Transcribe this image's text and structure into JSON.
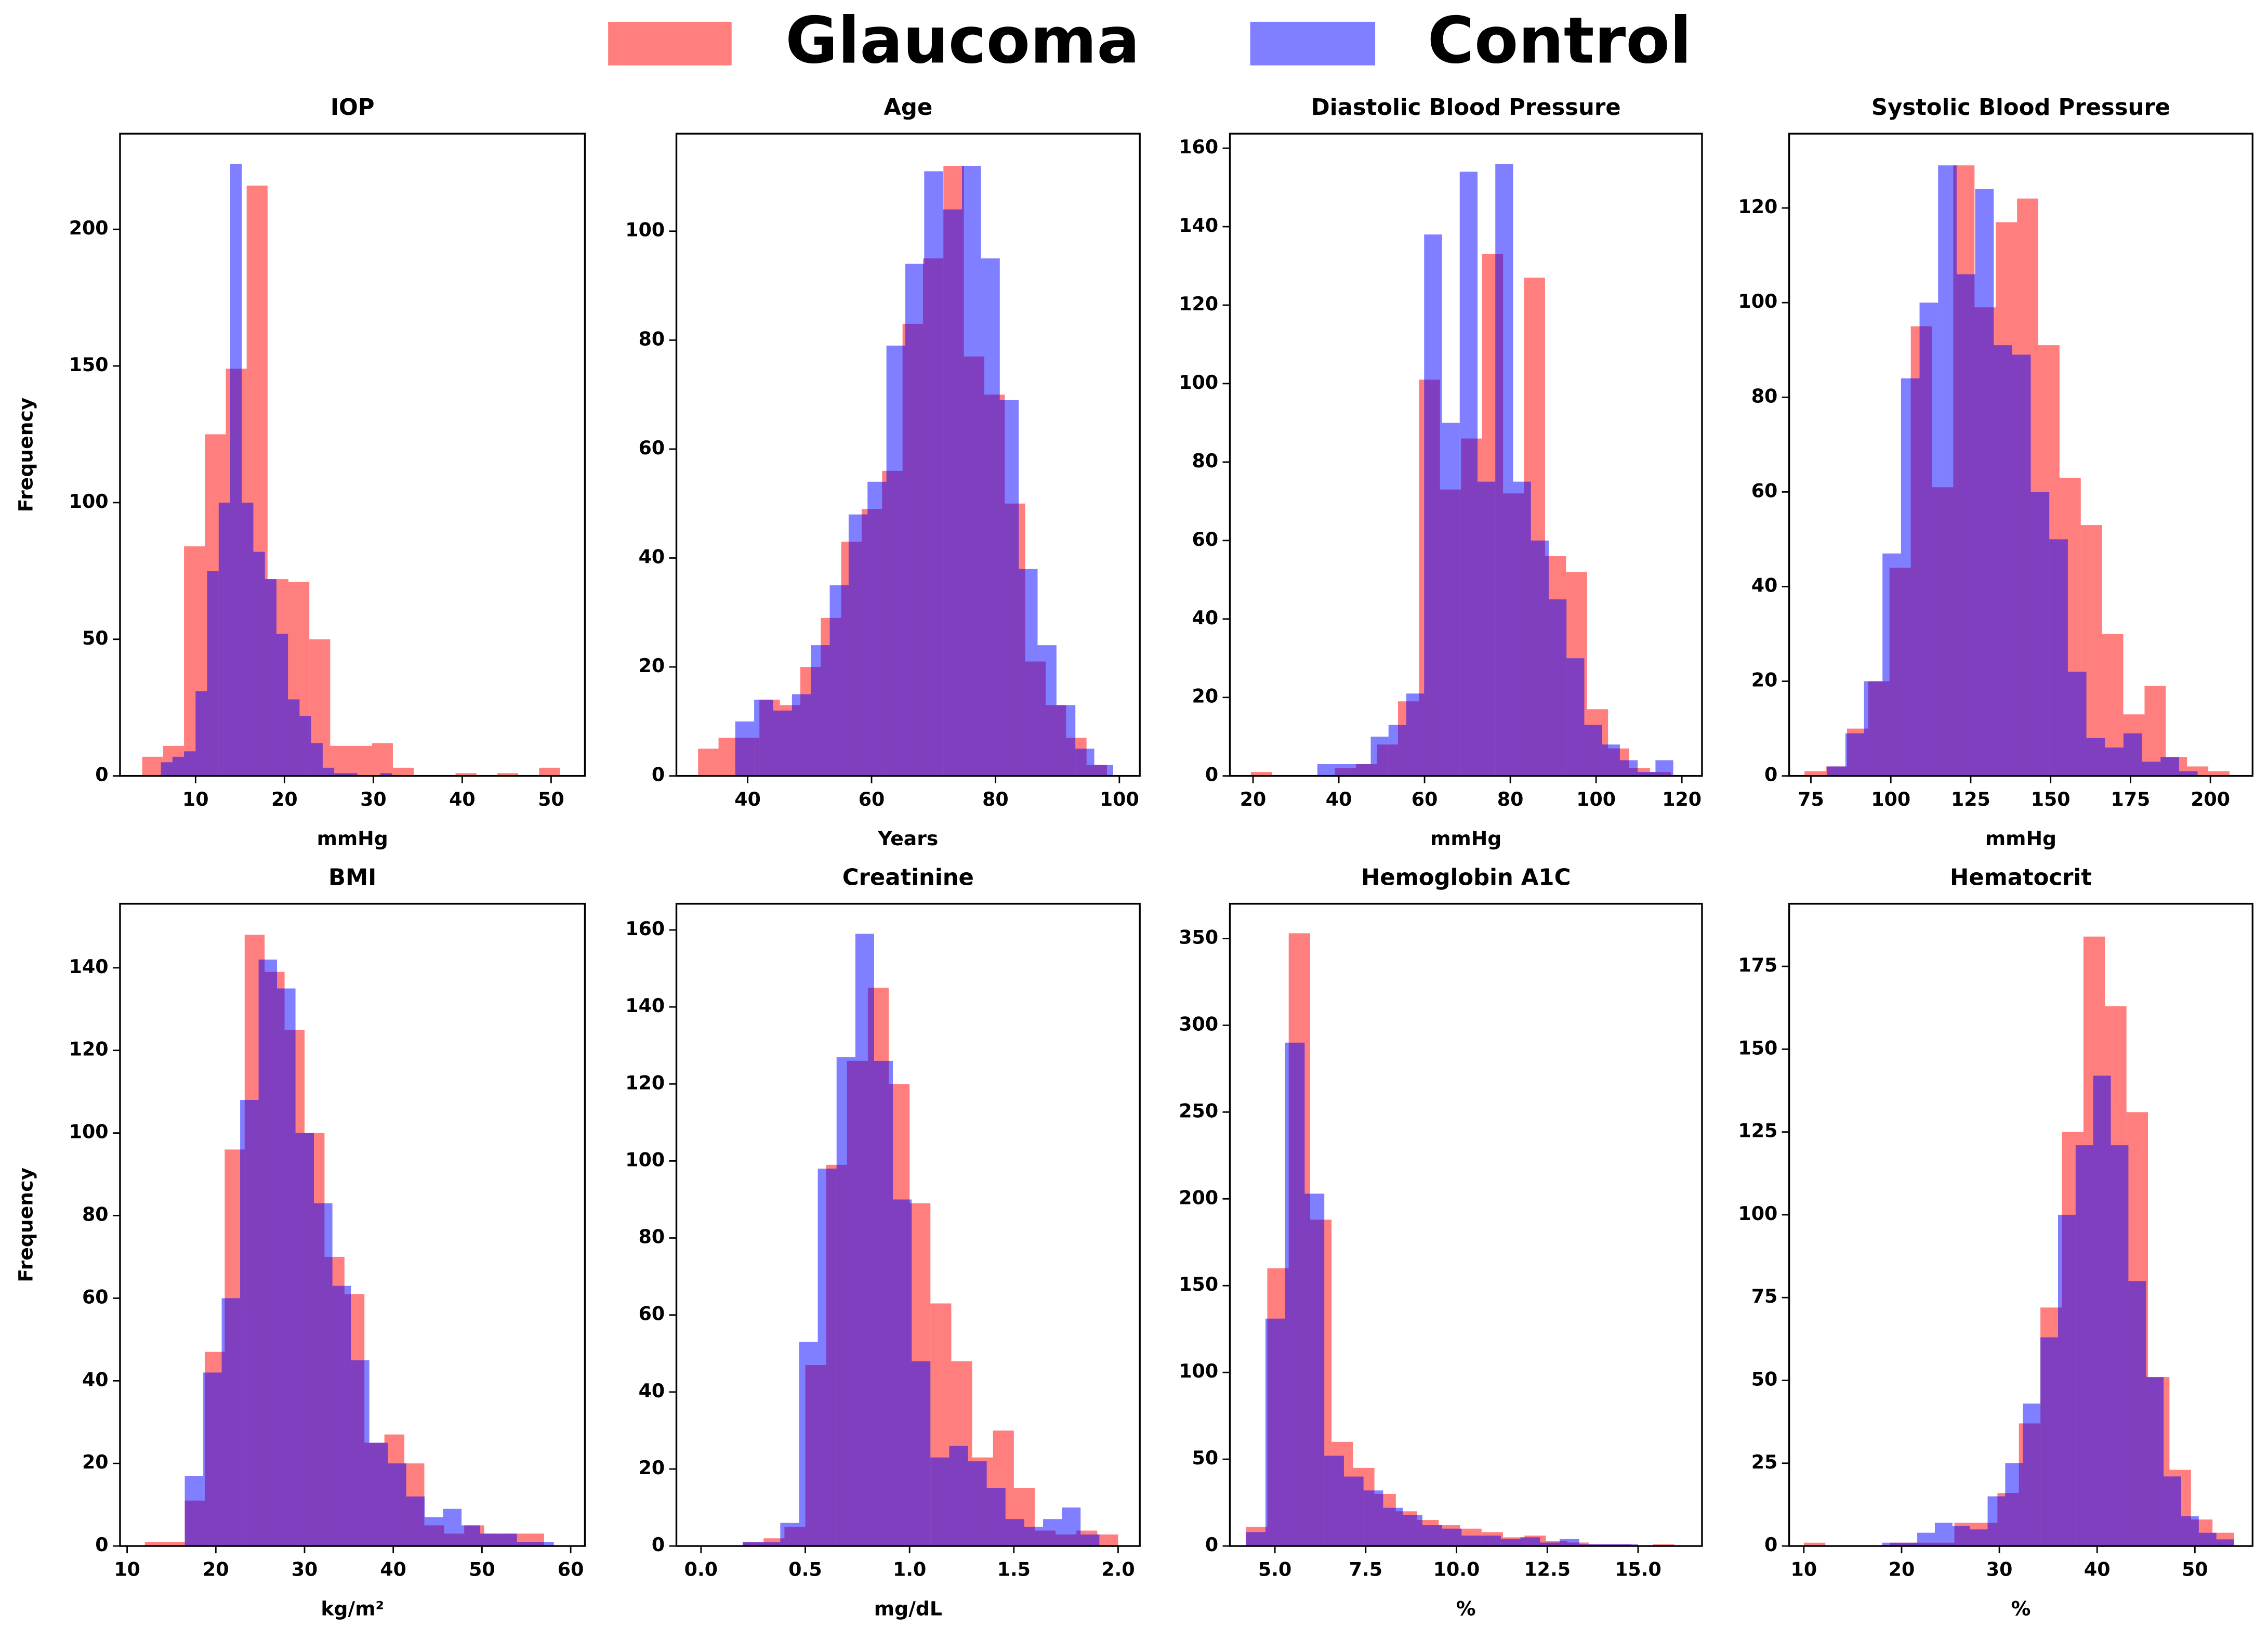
{
  "legend": [
    {
      "name": "Glaucoma",
      "color": "#ff0000"
    },
    {
      "name": "Control",
      "color": "#0000ff"
    }
  ],
  "alpha": 0.5,
  "chart_data": [
    {
      "type": "histogram",
      "title": "IOP",
      "xlabel": "mmHg",
      "ylabel": "Frequency",
      "xlim": [
        1.5,
        53.8
      ],
      "ylim": [
        0,
        235
      ],
      "xticks": [
        10,
        20,
        30,
        40,
        50
      ],
      "yticks": [
        0,
        50,
        100,
        150,
        200
      ],
      "series": [
        {
          "color": "#ff0000",
          "bins": [
            4,
            6.35,
            8.7,
            11.05,
            13.4,
            15.75,
            18.1,
            20.45,
            22.8,
            25.15,
            27.5,
            29.85,
            32.2,
            34.55,
            36.9,
            39.25,
            41.6,
            43.95,
            46.3,
            48.65,
            51
          ],
          "values": [
            7,
            11,
            84,
            125,
            149,
            216,
            72,
            71,
            50,
            11,
            11,
            12,
            3,
            0,
            0,
            1,
            0,
            1,
            0,
            3
          ]
        },
        {
          "color": "#0000ff",
          "bins": [
            6.1,
            7.4,
            8.7,
            10,
            11.3,
            12.6,
            13.9,
            15.2,
            16.5,
            17.8,
            19.1,
            20.4,
            21.7,
            23,
            24.3,
            25.6,
            26.9,
            28.2,
            29.5,
            30.8,
            32.1
          ],
          "values": [
            5,
            7,
            9,
            31,
            75,
            100,
            224,
            100,
            82,
            72,
            52,
            28,
            22,
            12,
            3,
            1,
            1,
            0,
            0,
            1
          ]
        }
      ]
    },
    {
      "type": "histogram",
      "title": "Age",
      "xlabel": "Years",
      "xlim": [
        28.5,
        103.3
      ],
      "ylim": [
        0,
        117.9
      ],
      "xticks": [
        40,
        60,
        80,
        100
      ],
      "yticks": [
        0,
        20,
        40,
        60,
        80,
        100
      ],
      "series": [
        {
          "color": "#ff0000",
          "bins": [
            32,
            35.3,
            38.6,
            41.9,
            45.2,
            48.5,
            51.8,
            55.1,
            58.4,
            61.7,
            65,
            68.3,
            71.6,
            74.9,
            78.2,
            81.5,
            84.8,
            88.1,
            91.4,
            94.7,
            98
          ],
          "values": [
            5,
            7,
            7,
            14,
            13,
            20,
            29,
            43,
            49,
            56,
            83,
            95,
            112,
            77,
            70,
            50,
            21,
            13,
            7,
            2
          ]
        },
        {
          "color": "#0000ff",
          "bins": [
            38,
            41.05,
            44.1,
            47.15,
            50.2,
            53.25,
            56.3,
            59.35,
            62.4,
            65.45,
            68.5,
            71.55,
            74.6,
            77.65,
            80.7,
            83.75,
            86.8,
            89.85,
            92.9,
            95.95,
            99
          ],
          "values": [
            10,
            14,
            12,
            15,
            24,
            35,
            48,
            54,
            79,
            94,
            111,
            104,
            112,
            95,
            69,
            38,
            24,
            13,
            5,
            2
          ]
        }
      ]
    },
    {
      "type": "histogram",
      "title": "Diastolic Blood Pressure",
      "xlabel": "mmHg",
      "xlim": [
        14.6,
        124.7
      ],
      "ylim": [
        0,
        163.7
      ],
      "xticks": [
        20,
        40,
        60,
        80,
        100,
        120
      ],
      "yticks": [
        0,
        20,
        40,
        60,
        80,
        100,
        120,
        140,
        160
      ],
      "series": [
        {
          "color": "#ff0000",
          "bins": [
            19.5,
            24.4,
            29.3,
            34.2,
            39.1,
            44,
            48.9,
            53.8,
            58.7,
            63.6,
            68.5,
            73.4,
            78.3,
            83.2,
            88.1,
            93,
            97.9,
            102.8,
            107.7,
            112.6,
            117.5
          ],
          "values": [
            1,
            0,
            0,
            0,
            2,
            3,
            8,
            19,
            101,
            73,
            86,
            133,
            72,
            127,
            56,
            52,
            17,
            7,
            2,
            1
          ]
        },
        {
          "color": "#0000ff",
          "bins": [
            35,
            39.15,
            43.3,
            47.45,
            51.6,
            55.75,
            59.9,
            64.05,
            68.2,
            72.35,
            76.5,
            80.65,
            84.8,
            88.95,
            93.1,
            97.25,
            101.4,
            105.55,
            109.7,
            113.85,
            118
          ],
          "values": [
            3,
            3,
            3,
            10,
            13,
            21,
            138,
            90,
            154,
            75,
            156,
            75,
            60,
            45,
            30,
            13,
            8,
            4,
            1,
            4
          ]
        }
      ]
    },
    {
      "type": "histogram",
      "title": "Systolic Blood Pressure",
      "xlabel": "mmHg",
      "xlim": [
        68.2,
        213.2
      ],
      "ylim": [
        0,
        135.7
      ],
      "xticks": [
        75,
        100,
        125,
        150,
        175,
        200
      ],
      "yticks": [
        0,
        20,
        40,
        60,
        80,
        100,
        120
      ],
      "series": [
        {
          "color": "#ff0000",
          "bins": [
            73,
            79.65,
            86.3,
            92.95,
            99.6,
            106.25,
            112.9,
            119.55,
            126.2,
            132.85,
            139.5,
            146.15,
            152.8,
            159.45,
            166.1,
            172.75,
            179.4,
            186.05,
            192.7,
            199.35,
            206
          ],
          "values": [
            1,
            2,
            10,
            20,
            44,
            95,
            61,
            129,
            99,
            117,
            122,
            91,
            63,
            53,
            30,
            13,
            19,
            4,
            2,
            1
          ]
        },
        {
          "color": "#0000ff",
          "bins": [
            80,
            85.8,
            91.6,
            97.4,
            103.2,
            109,
            114.8,
            120.6,
            126.4,
            132.2,
            138,
            143.8,
            149.6,
            155.4,
            161.2,
            167,
            172.8,
            178.6,
            184.4,
            190.2,
            196
          ],
          "values": [
            2,
            9,
            20,
            47,
            84,
            100,
            129,
            106,
            124,
            91,
            89,
            60,
            50,
            22,
            8,
            6,
            9,
            3,
            4,
            1
          ]
        }
      ]
    },
    {
      "type": "histogram",
      "title": "BMI",
      "xlabel": "kg/m²",
      "ylabel": "Frequency",
      "xlim": [
        9.2,
        61.6
      ],
      "ylim": [
        0,
        155.5
      ],
      "xticks": [
        10,
        20,
        30,
        40,
        50,
        60
      ],
      "yticks": [
        0,
        20,
        40,
        60,
        80,
        100,
        120,
        140
      ],
      "series": [
        {
          "color": "#ff0000",
          "bins": [
            12,
            14.25,
            16.5,
            18.75,
            21,
            23.25,
            25.5,
            27.75,
            30,
            32.25,
            34.5,
            36.75,
            39,
            41.25,
            43.5,
            45.75,
            48,
            50.25,
            52.5,
            54.75,
            57
          ],
          "values": [
            1,
            1,
            11,
            47,
            96,
            148,
            139,
            125,
            100,
            70,
            61,
            25,
            27,
            20,
            5,
            3,
            5,
            3,
            3,
            3
          ]
        },
        {
          "color": "#0000ff",
          "bins": [
            16.5,
            18.58,
            20.66,
            22.74,
            24.82,
            26.9,
            28.98,
            31.06,
            33.14,
            35.22,
            37.3,
            39.38,
            41.46,
            43.54,
            45.62,
            47.7,
            49.78,
            51.86,
            53.94,
            56.02,
            58.1
          ],
          "values": [
            17,
            42,
            60,
            108,
            142,
            135,
            100,
            83,
            63,
            45,
            25,
            20,
            12,
            7,
            9,
            5,
            3,
            3,
            1,
            1
          ]
        }
      ]
    },
    {
      "type": "histogram",
      "title": "Creatinine",
      "xlabel": "mg/dL",
      "xlim": [
        -0.118,
        2.104
      ],
      "ylim": [
        0,
        166.8
      ],
      "xticks": [
        {
          "value": 0,
          "label": "0.0"
        },
        {
          "value": 0.5,
          "label": "0.5"
        },
        {
          "value": 1,
          "label": "1.0"
        },
        {
          "value": 1.5,
          "label": "1.5"
        },
        {
          "value": 2,
          "label": "2.0"
        }
      ],
      "yticks": [
        0,
        20,
        40,
        60,
        80,
        100,
        120,
        140,
        160
      ],
      "series": [
        {
          "color": "#ff0000",
          "bins": [
            0,
            0.1,
            0.2,
            0.3,
            0.4,
            0.5,
            0.6,
            0.7,
            0.8,
            0.9,
            1,
            1.1,
            1.2,
            1.3,
            1.4,
            1.5,
            1.6,
            1.7,
            1.8,
            1.9,
            2
          ],
          "values": [
            0,
            0,
            1,
            2,
            5,
            47,
            99,
            126,
            145,
            120,
            89,
            63,
            48,
            23,
            30,
            15,
            4,
            3,
            4,
            3
          ]
        },
        {
          "color": "#0000ff",
          "bins": [
            0.2,
            0.29,
            0.38,
            0.47,
            0.56,
            0.65,
            0.74,
            0.83,
            0.92,
            1.01,
            1.1,
            1.19,
            1.28,
            1.37,
            1.46,
            1.55,
            1.64,
            1.73,
            1.82,
            1.91,
            2
          ],
          "values": [
            1,
            1,
            6,
            53,
            98,
            127,
            159,
            126,
            90,
            48,
            23,
            26,
            22,
            15,
            7,
            5,
            7,
            10,
            3,
            0
          ]
        }
      ]
    },
    {
      "type": "histogram",
      "title": "Hemoglobin A1C",
      "xlabel": "%",
      "xlim": [
        3.76,
        16.76
      ],
      "ylim": [
        0,
        370
      ],
      "xticks": [
        {
          "value": 5,
          "label": "5.0"
        },
        7.5,
        {
          "value": 10,
          "label": "10.0"
        },
        12.5,
        {
          "value": 15,
          "label": "15.0"
        }
      ],
      "yticks": [
        0,
        50,
        100,
        150,
        200,
        250,
        300,
        350
      ],
      "series": [
        {
          "color": "#ff0000",
          "bins": [
            4.2,
            4.79,
            5.38,
            5.97,
            6.56,
            7.15,
            7.74,
            8.33,
            8.92,
            9.51,
            10.1,
            10.69,
            11.28,
            11.87,
            12.46,
            13.05,
            13.64,
            14.23,
            14.82,
            15.41,
            16
          ],
          "values": [
            11,
            160,
            353,
            188,
            60,
            45,
            30,
            20,
            15,
            12,
            10,
            8,
            5,
            6,
            3,
            2,
            1,
            1,
            0,
            1
          ]
        },
        {
          "color": "#0000ff",
          "bins": [
            4.2,
            4.74,
            5.28,
            5.82,
            6.36,
            6.9,
            7.44,
            7.98,
            8.52,
            9.06,
            9.6,
            10.14,
            10.68,
            11.22,
            11.76,
            12.3,
            12.84,
            13.38,
            13.92,
            14.46,
            15
          ],
          "values": [
            8,
            131,
            290,
            203,
            52,
            40,
            32,
            22,
            18,
            12,
            10,
            6,
            6,
            4,
            5,
            2,
            4,
            1,
            1,
            1
          ]
        }
      ]
    },
    {
      "type": "histogram",
      "title": "Hematocrit",
      "xlabel": "%",
      "xlim": [
        8.5,
        55.9
      ],
      "ylim": [
        0,
        193.9
      ],
      "xticks": [
        10,
        20,
        30,
        40,
        50
      ],
      "yticks": [
        0,
        25,
        50,
        75,
        100,
        125,
        150,
        175
      ],
      "series": [
        {
          "color": "#ff0000",
          "bins": [
            10,
            12.2,
            14.4,
            16.6,
            18.8,
            21,
            23.2,
            25.4,
            27.6,
            29.8,
            32,
            34.2,
            36.4,
            38.6,
            40.8,
            43,
            45.2,
            47.4,
            49.6,
            51.8,
            54
          ],
          "values": [
            1,
            0,
            0,
            0,
            1,
            1,
            1,
            7,
            7,
            16,
            37,
            72,
            125,
            184,
            163,
            131,
            51,
            23,
            8,
            4
          ]
        },
        {
          "color": "#0000ff",
          "bins": [
            18,
            19.8,
            21.6,
            23.4,
            25.2,
            27,
            28.8,
            30.6,
            32.4,
            34.2,
            36,
            37.8,
            39.6,
            41.4,
            43.2,
            45,
            46.8,
            48.6,
            50.4,
            52.2,
            54
          ],
          "values": [
            1,
            1,
            4,
            7,
            6,
            5,
            15,
            25,
            43,
            63,
            100,
            121,
            142,
            121,
            80,
            51,
            21,
            9,
            4,
            2
          ]
        }
      ]
    }
  ]
}
